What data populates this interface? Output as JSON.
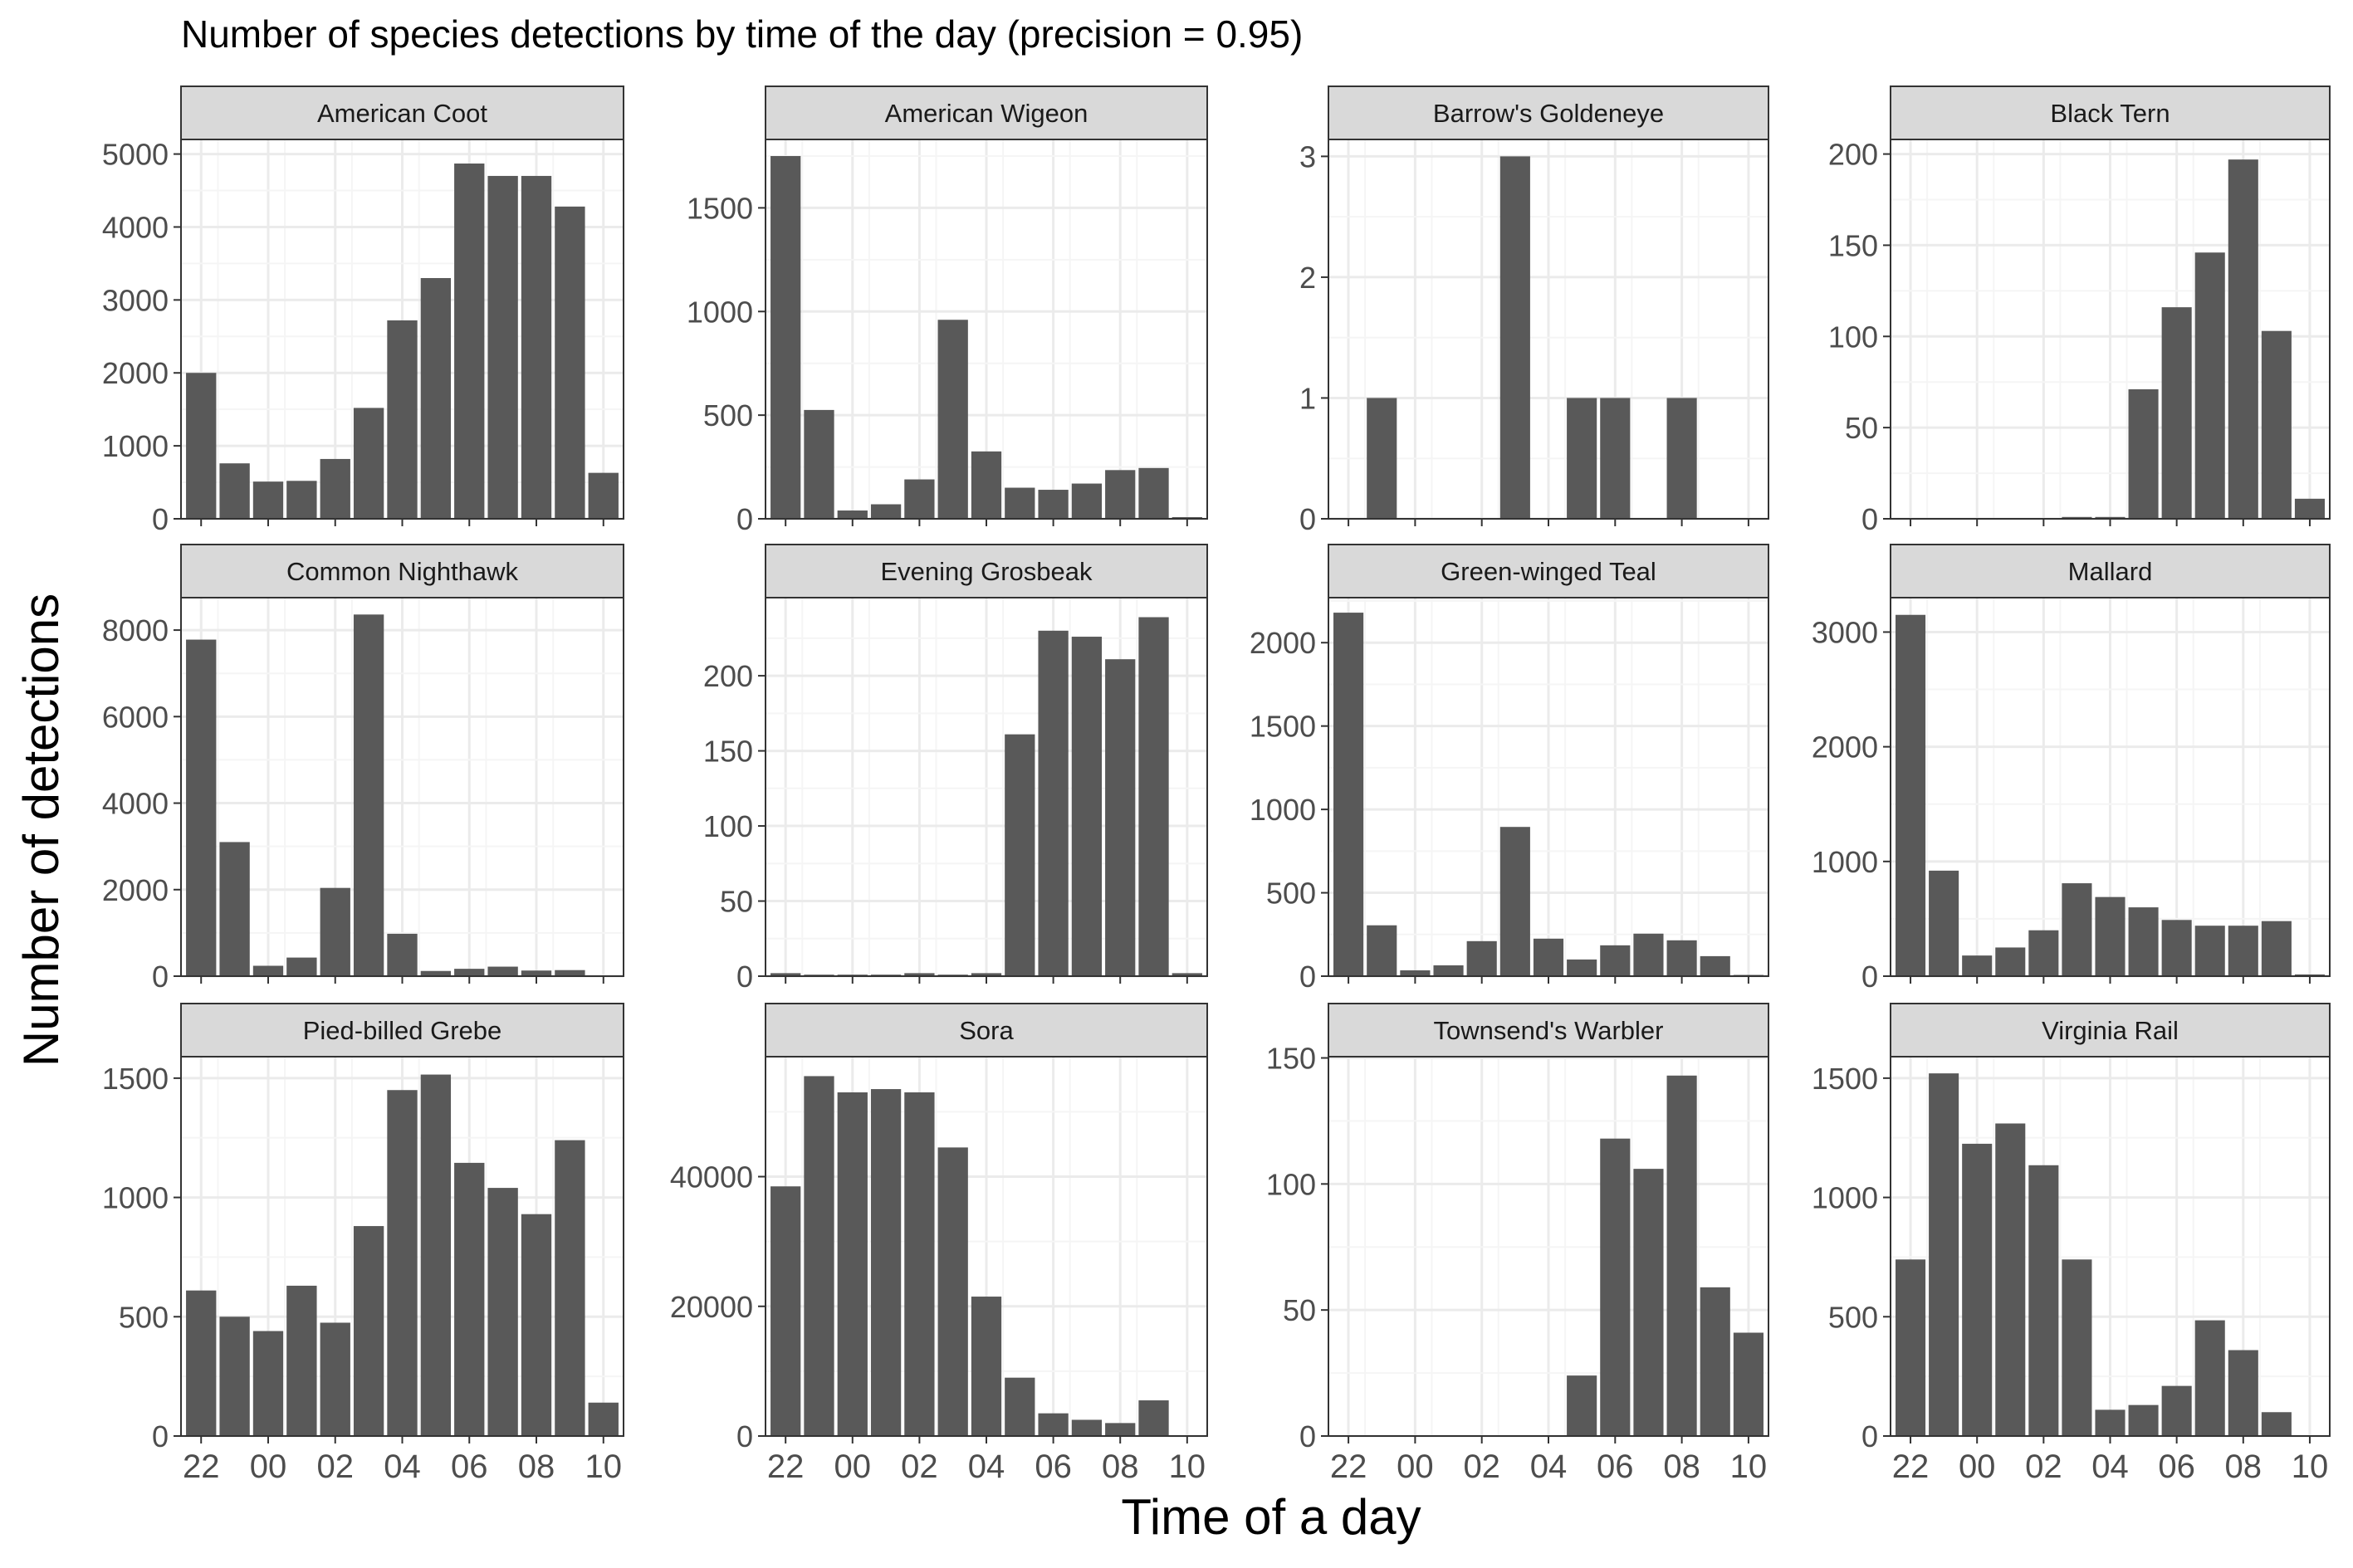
{
  "chart_data": {
    "type": "bar",
    "title": "Number of species detections by time of the day (precision = 0.95)",
    "xlabel": "Time of a day",
    "ylabel": "Number of detections",
    "grid": true,
    "x": [
      22,
      23,
      0,
      1,
      2,
      3,
      4,
      5,
      6,
      7,
      8,
      9,
      10
    ],
    "x_ticks": [
      22,
      0,
      2,
      4,
      6,
      8,
      10
    ],
    "x_tick_labels": [
      "22",
      "00",
      "02",
      "04",
      "06",
      "08",
      "10"
    ],
    "facets": [
      {
        "name": "American Coot",
        "ylim": [
          0,
          5200
        ],
        "y_ticks": [
          0,
          1000,
          2000,
          3000,
          4000,
          5000
        ],
        "values": [
          2000,
          760,
          510,
          520,
          820,
          1520,
          2720,
          3300,
          4870,
          4700,
          4700,
          4280,
          630
        ]
      },
      {
        "name": "American Wigeon",
        "ylim": [
          0,
          1830
        ],
        "y_ticks": [
          0,
          500,
          1000,
          1500
        ],
        "values": [
          1750,
          525,
          40,
          70,
          190,
          960,
          325,
          150,
          140,
          170,
          235,
          245,
          8
        ]
      },
      {
        "name": "Barrow's Goldeneye",
        "ylim": [
          0,
          3.14
        ],
        "y_ticks": [
          0,
          1,
          2,
          3
        ],
        "values": [
          0,
          1,
          0,
          0,
          0,
          3,
          0,
          1,
          1,
          0,
          1,
          0,
          0
        ]
      },
      {
        "name": "Black Tern",
        "ylim": [
          0,
          208
        ],
        "y_ticks": [
          0,
          50,
          100,
          150,
          200
        ],
        "values": [
          0,
          0,
          0,
          0,
          0,
          1,
          1,
          71,
          116,
          146,
          197,
          103,
          11
        ]
      },
      {
        "name": "Common Nighthawk",
        "ylim": [
          0,
          8750
        ],
        "y_ticks": [
          0,
          2000,
          4000,
          6000,
          8000
        ],
        "values": [
          7780,
          3100,
          240,
          430,
          2040,
          8360,
          980,
          120,
          170,
          220,
          130,
          140,
          0
        ]
      },
      {
        "name": "Evening Grosbeak",
        "ylim": [
          0,
          252
        ],
        "y_ticks": [
          0,
          50,
          100,
          150,
          200
        ],
        "values": [
          2,
          1,
          1,
          1,
          2,
          1,
          2,
          161,
          230,
          226,
          211,
          239,
          2
        ]
      },
      {
        "name": "Green-winged Teal",
        "ylim": [
          0,
          2270
        ],
        "y_ticks": [
          0,
          500,
          1000,
          1500,
          2000
        ],
        "values": [
          2180,
          305,
          35,
          65,
          210,
          895,
          225,
          100,
          185,
          255,
          215,
          120,
          4
        ]
      },
      {
        "name": "Mallard",
        "ylim": [
          0,
          3300
        ],
        "y_ticks": [
          0,
          1000,
          2000,
          3000
        ],
        "values": [
          3150,
          920,
          180,
          250,
          400,
          810,
          690,
          600,
          490,
          440,
          440,
          480,
          15
        ]
      },
      {
        "name": "Pied-billed Grebe",
        "ylim": [
          0,
          1590
        ],
        "y_ticks": [
          0,
          500,
          1000,
          1500
        ],
        "values": [
          610,
          500,
          440,
          630,
          475,
          880,
          1450,
          1515,
          1145,
          1040,
          930,
          1240,
          140
        ]
      },
      {
        "name": "Sora",
        "ylim": [
          0,
          58500
        ],
        "y_ticks": [
          0,
          20000,
          40000
        ],
        "values": [
          38500,
          55500,
          53000,
          53500,
          53000,
          44500,
          21500,
          9000,
          3500,
          2500,
          2000,
          5500,
          0
        ]
      },
      {
        "name": "Townsend's Warbler",
        "ylim": [
          0,
          150.5
        ],
        "y_ticks": [
          0,
          50,
          100,
          150
        ],
        "values": [
          0,
          0,
          0,
          0,
          0,
          0,
          0,
          24,
          118,
          106,
          143,
          59,
          41
        ]
      },
      {
        "name": "Virginia Rail",
        "ylim": [
          0,
          1590
        ],
        "y_ticks": [
          0,
          500,
          1000,
          1500
        ],
        "values": [
          740,
          1520,
          1225,
          1310,
          1135,
          740,
          110,
          130,
          210,
          485,
          360,
          100,
          0
        ]
      }
    ],
    "colors": {
      "bar": "#595959",
      "strip_fill": "#d9d9d9",
      "grid_major": "#ebebeb",
      "grid_minor": "#f5f5f5",
      "panel_border": "#333333",
      "text": "#4d4d4d"
    }
  }
}
